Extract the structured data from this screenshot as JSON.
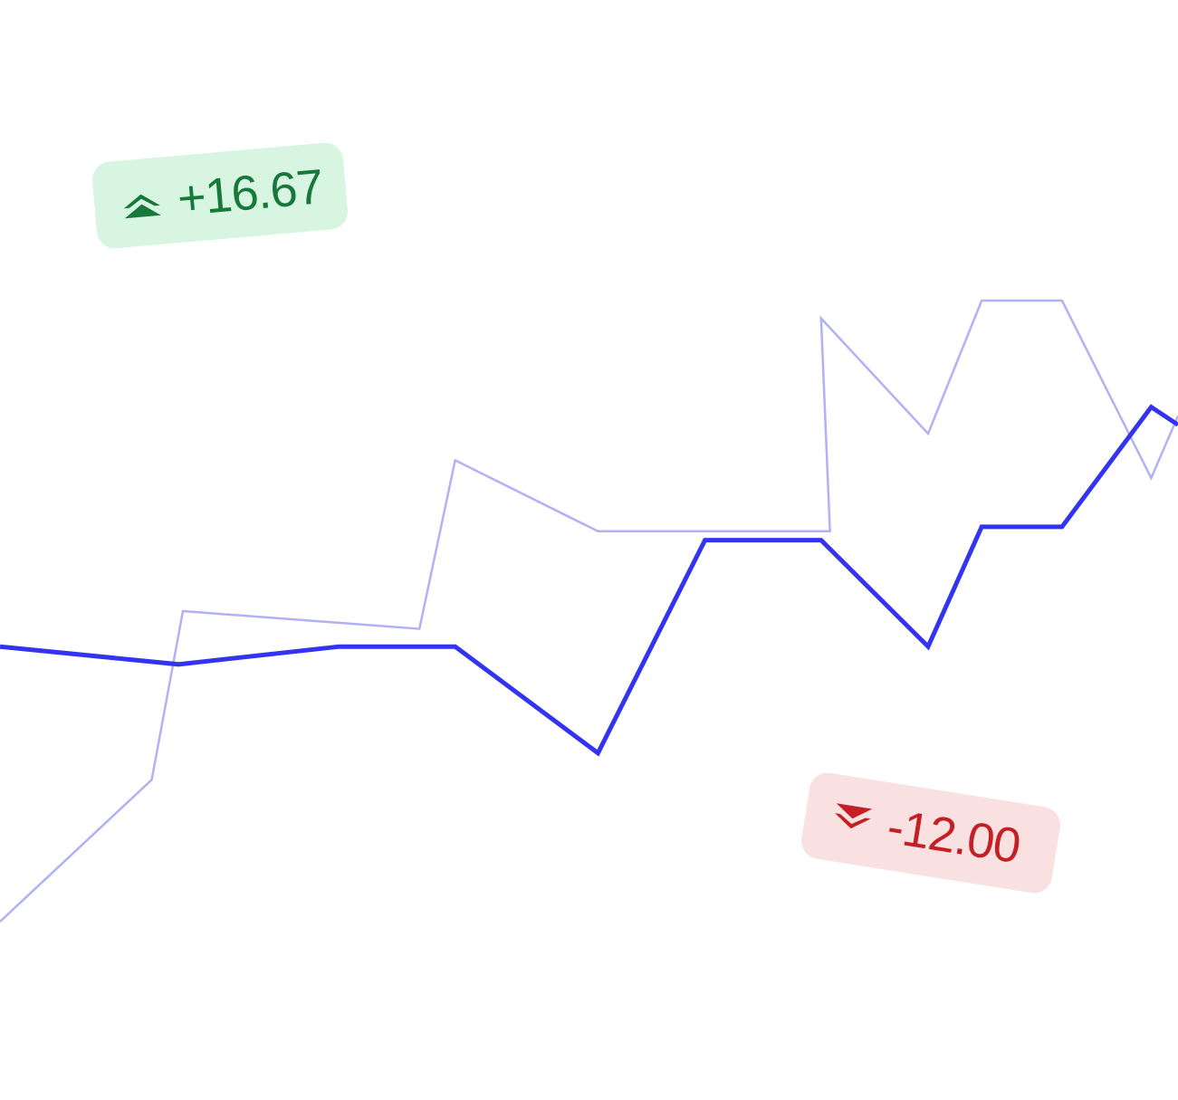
{
  "chart_data": {
    "type": "line",
    "title": "",
    "xlabel": "",
    "ylabel": "",
    "grid": false,
    "series": [
      {
        "role": "primary",
        "color": "#3434f0",
        "points": [
          [
            0,
            41
          ],
          [
            20,
            39
          ],
          [
            38,
            41
          ],
          [
            51,
            41
          ],
          [
            67,
            29
          ],
          [
            79,
            53
          ],
          [
            92,
            53
          ],
          [
            104,
            41
          ],
          [
            110,
            54.5
          ],
          [
            119,
            54.5
          ],
          [
            129,
            68
          ],
          [
            132,
            66
          ]
        ]
      },
      {
        "role": "comparison",
        "color": "#b1b1f5",
        "points": [
          [
            0,
            10
          ],
          [
            17,
            26
          ],
          [
            20.5,
            45
          ],
          [
            47,
            43
          ],
          [
            51,
            62
          ],
          [
            67,
            54
          ],
          [
            93,
            54
          ],
          [
            92,
            78
          ],
          [
            104,
            65
          ],
          [
            110,
            80
          ],
          [
            119,
            80
          ],
          [
            129,
            60
          ],
          [
            132,
            67
          ]
        ]
      }
    ],
    "xlim": [
      0,
      132
    ],
    "ylim": [
      0,
      100
    ]
  },
  "badges": {
    "up": {
      "value": "+16.67",
      "icon": "chevron-double-up-icon",
      "color": "#17783a",
      "background": "#d8f5e1"
    },
    "down": {
      "value": "-12.00",
      "icon": "chevron-double-down-icon",
      "color": "#c41f24",
      "background": "#fae1e1"
    }
  }
}
